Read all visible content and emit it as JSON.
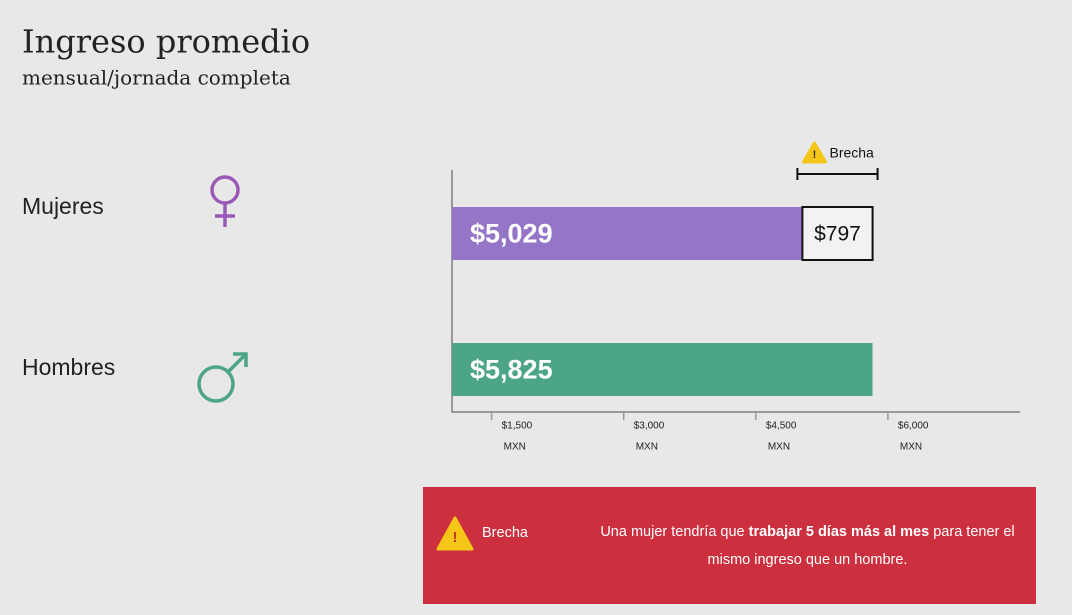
{
  "chart_data": {
    "type": "bar",
    "orientation": "horizontal",
    "title": "Ingreso promedio",
    "subtitle": "mensual/jornada completa",
    "categories": [
      "Mujeres",
      "Hombres"
    ],
    "values": [
      5029,
      5825
    ],
    "value_labels": [
      "$5,029",
      "$5,825"
    ],
    "colors": [
      "#9575c8",
      "#4ca584"
    ],
    "gap": {
      "name": "Brecha",
      "value": 797,
      "label": "$797"
    },
    "xlim": [
      1050,
      7500
    ],
    "xticks": [
      {
        "value": 1500,
        "label": "$1,500"
      },
      {
        "value": 3000,
        "label": "$3,000"
      },
      {
        "value": 4500,
        "label": "$4,500"
      },
      {
        "value": 6000,
        "label": "$6,000"
      }
    ],
    "xtick_unit": "MXN"
  },
  "banner": {
    "label": "Brecha",
    "message": [
      "Una mujer tendría que",
      "trabajar 5 días más al mes",
      "para tener el mismo ingreso que un hombre."
    ]
  }
}
